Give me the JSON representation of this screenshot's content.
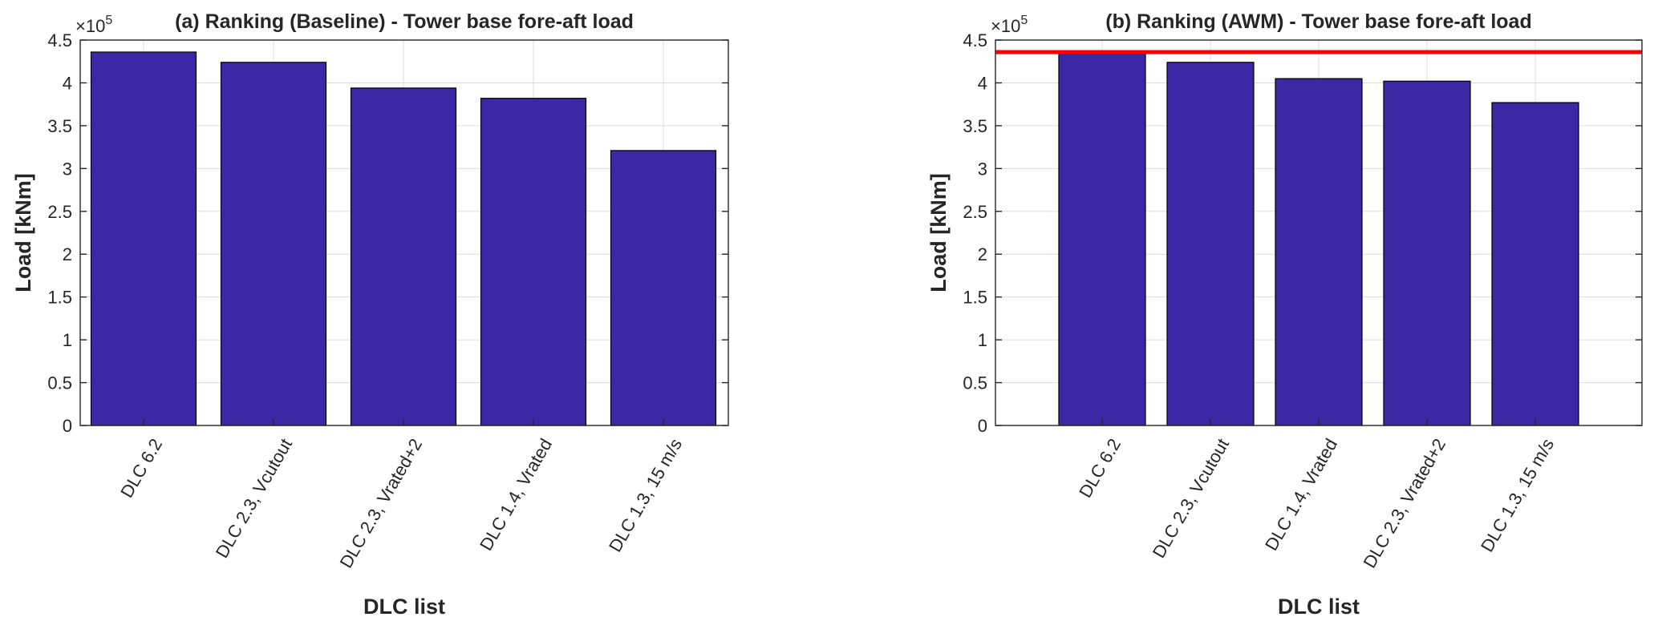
{
  "chart_data": [
    {
      "type": "bar",
      "title": "(a) Ranking (Baseline) - Tower base fore-aft load",
      "xlabel": "DLC list",
      "ylabel": "Load [kNm]",
      "exponent_label": "×10",
      "exponent_power": "5",
      "categories": [
        "DLC 6.2",
        "DLC 2.3, Vcutout",
        "DLC 2.3, Vrated+2",
        "DLC 1.4, Vrated",
        "DLC 1.3, 15 m/s"
      ],
      "values": [
        436000,
        424000,
        394000,
        382000,
        321000
      ],
      "ylim": [
        0,
        450000
      ],
      "yticks": [
        0,
        50000,
        100000,
        150000,
        200000,
        250000,
        300000,
        350000,
        400000,
        450000
      ],
      "ytick_labels": [
        "0",
        "0.5",
        "1",
        "1.5",
        "2",
        "2.5",
        "3",
        "3.5",
        "4",
        "4.5"
      ],
      "bar_color": "#3c28a4",
      "grid": true
    },
    {
      "type": "bar",
      "title": "(b) Ranking (AWM) - Tower base fore-aft load",
      "xlabel": "DLC list",
      "ylabel": "Load [kNm]",
      "exponent_label": "×10",
      "exponent_power": "5",
      "categories": [
        "DLC 6.2",
        "DLC 2.3, Vcutout",
        "DLC 1.4, Vrated",
        "DLC 2.3, Vrated+2",
        "DLC 1.3, 15 m/s"
      ],
      "values": [
        434000,
        424000,
        405000,
        402000,
        377000
      ],
      "ylim": [
        0,
        450000
      ],
      "yticks": [
        0,
        50000,
        100000,
        150000,
        200000,
        250000,
        300000,
        350000,
        400000,
        450000
      ],
      "ytick_labels": [
        "0",
        "0.5",
        "1",
        "1.5",
        "2",
        "2.5",
        "3",
        "3.5",
        "4",
        "4.5"
      ],
      "bar_color": "#3c28a4",
      "grid": true,
      "reference_line": {
        "y": 436000,
        "color": "#ff0000"
      }
    }
  ]
}
